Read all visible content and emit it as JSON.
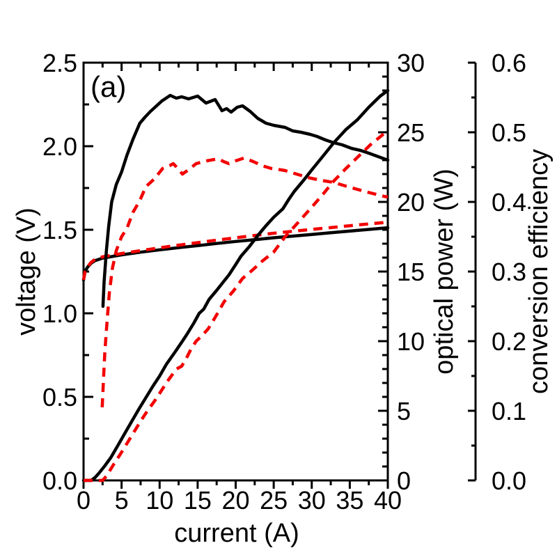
{
  "figure": {
    "panel_label": "(a)",
    "colors": {
      "foreground": "#000000",
      "background": "#ffffff",
      "device_a_black": "#000000",
      "device_b_red": "#f20000"
    }
  },
  "chart_data": {
    "type": "line",
    "title": "",
    "grid": false,
    "legend": "none",
    "axes": {
      "x": {
        "label": "current (A)",
        "range": [
          0,
          40
        ],
        "major_tick": 5,
        "minor_tick": 2.5,
        "tick_labels": [
          "0",
          "5",
          "10",
          "15",
          "20",
          "25",
          "30",
          "35",
          "40"
        ]
      },
      "y_left": {
        "label": "voltage (V)",
        "range": [
          0,
          2.5
        ],
        "major_tick": 0.5,
        "minor_tick": 0.25,
        "tick_labels": [
          "0.0",
          "0.5",
          "1.0",
          "1.5",
          "2.0",
          "2.5"
        ]
      },
      "y_right_power": {
        "label": "optical power (W)",
        "range": [
          0,
          30
        ],
        "major_tick": 5,
        "minor_tick": 1,
        "tick_labels": [
          "0",
          "5",
          "10",
          "15",
          "20",
          "25",
          "30"
        ]
      },
      "y_right_eff": {
        "label": "conversion efficiency",
        "range": [
          0,
          0.6
        ],
        "major_tick": 0.1,
        "minor_tick": 0.05,
        "tick_labels": [
          "0.0",
          "0.1",
          "0.2",
          "0.3",
          "0.4",
          "0.5",
          "0.6"
        ]
      }
    },
    "series": [
      {
        "name": "voltage-black-solid",
        "axis": "y_left",
        "line_style": "solid",
        "color_key": "device_a_black",
        "points": [
          [
            0,
            1.2
          ],
          [
            0.2,
            1.25
          ],
          [
            0.5,
            1.275
          ],
          [
            1,
            1.3
          ],
          [
            1.5,
            1.315
          ],
          [
            2.5,
            1.33
          ],
          [
            5,
            1.35
          ],
          [
            7.5,
            1.366
          ],
          [
            10,
            1.38
          ],
          [
            12.5,
            1.393
          ],
          [
            15,
            1.405
          ],
          [
            17.5,
            1.418
          ],
          [
            20,
            1.43
          ],
          [
            22.5,
            1.441
          ],
          [
            25,
            1.452
          ],
          [
            27.5,
            1.462
          ],
          [
            30,
            1.472
          ],
          [
            32.5,
            1.482
          ],
          [
            35,
            1.492
          ],
          [
            37.5,
            1.502
          ],
          [
            40,
            1.512
          ]
        ]
      },
      {
        "name": "voltage-red-dashed",
        "axis": "y_left",
        "line_style": "dashed",
        "color_key": "device_b_red",
        "points": [
          [
            0,
            1.2
          ],
          [
            0.2,
            1.252
          ],
          [
            0.5,
            1.278
          ],
          [
            1,
            1.305
          ],
          [
            1.5,
            1.322
          ],
          [
            2.5,
            1.338
          ],
          [
            5,
            1.358
          ],
          [
            7.5,
            1.375
          ],
          [
            10,
            1.392
          ],
          [
            12.5,
            1.408
          ],
          [
            15,
            1.423
          ],
          [
            17.5,
            1.438
          ],
          [
            20,
            1.452
          ],
          [
            22.5,
            1.466
          ],
          [
            25,
            1.479
          ],
          [
            27.5,
            1.491
          ],
          [
            30,
            1.502
          ],
          [
            32.5,
            1.513
          ],
          [
            35,
            1.524
          ],
          [
            37.5,
            1.535
          ],
          [
            40,
            1.545
          ]
        ]
      },
      {
        "name": "optical-power-black-solid",
        "axis": "y_right_power",
        "line_style": "solid",
        "color_key": "device_a_black",
        "points": [
          [
            0,
            0
          ],
          [
            1,
            0
          ],
          [
            1.5,
            0.2
          ],
          [
            2,
            0.5
          ],
          [
            2.8,
            1.05
          ],
          [
            3.6,
            1.65
          ],
          [
            4.5,
            2.5
          ],
          [
            5.45,
            3.4
          ],
          [
            6.4,
            4.3
          ],
          [
            7.3,
            5.15
          ],
          [
            8.2,
            5.95
          ],
          [
            9.1,
            6.75
          ],
          [
            10,
            7.5
          ],
          [
            10.9,
            8.35
          ],
          [
            12,
            9.2
          ],
          [
            13,
            10
          ],
          [
            13.6,
            10.5
          ],
          [
            14.5,
            11.3
          ],
          [
            15.2,
            12
          ],
          [
            15.8,
            12.3
          ],
          [
            16.5,
            13
          ],
          [
            17.5,
            13.65
          ],
          [
            18.3,
            14.2
          ],
          [
            19.1,
            14.75
          ],
          [
            20,
            15.5
          ],
          [
            20.7,
            16.1
          ],
          [
            21.8,
            16.8
          ],
          [
            23,
            17.65
          ],
          [
            24,
            18.3
          ],
          [
            25,
            18.9
          ],
          [
            26.2,
            19.5
          ],
          [
            27,
            20.2
          ],
          [
            27.7,
            20.75
          ],
          [
            29,
            21.6
          ],
          [
            30,
            22.3
          ],
          [
            31.5,
            23.3
          ],
          [
            32.9,
            24.25
          ],
          [
            34.5,
            25.2
          ],
          [
            36,
            25.9
          ],
          [
            37.5,
            26.8
          ],
          [
            39,
            27.6
          ],
          [
            40,
            28
          ]
        ]
      },
      {
        "name": "optical-power-red-dashed",
        "axis": "y_right_power",
        "line_style": "dashed",
        "color_key": "device_b_red",
        "points": [
          [
            0,
            0
          ],
          [
            2.5,
            0
          ],
          [
            3,
            0.3
          ],
          [
            3.9,
            1.1
          ],
          [
            4.8,
            1.85
          ],
          [
            5.7,
            2.65
          ],
          [
            6.6,
            3.45
          ],
          [
            7.5,
            4.25
          ],
          [
            8.4,
            5
          ],
          [
            9.4,
            5.75
          ],
          [
            10.3,
            6.5
          ],
          [
            11.2,
            7.25
          ],
          [
            12.2,
            8
          ],
          [
            12.9,
            8.2
          ],
          [
            13.5,
            8.75
          ],
          [
            14.1,
            9.4
          ],
          [
            14.8,
            10
          ],
          [
            15.6,
            10.4
          ],
          [
            16.4,
            10.9
          ],
          [
            17.4,
            11.8
          ],
          [
            18.5,
            12.85
          ],
          [
            19.7,
            13.6
          ],
          [
            20.9,
            14.5
          ],
          [
            22.2,
            15.1
          ],
          [
            23.5,
            15.75
          ],
          [
            25,
            16.4
          ],
          [
            26.5,
            17.5
          ],
          [
            28,
            18.4
          ],
          [
            29.8,
            19.5
          ],
          [
            31.4,
            20.5
          ],
          [
            32.9,
            21.5
          ],
          [
            34.5,
            22.4
          ],
          [
            36,
            23.2
          ],
          [
            37.7,
            24.1
          ],
          [
            39.5,
            24.9
          ],
          [
            40,
            25.1
          ]
        ]
      },
      {
        "name": "efficiency-black-solid",
        "axis": "y_right_eff",
        "line_style": "solid",
        "color_key": "device_a_black",
        "points": [
          [
            2.55,
            0.25
          ],
          [
            2.7,
            0.285
          ],
          [
            3,
            0.33
          ],
          [
            3.3,
            0.365
          ],
          [
            3.7,
            0.4
          ],
          [
            4.3,
            0.425
          ],
          [
            5,
            0.443
          ],
          [
            5.7,
            0.467
          ],
          [
            6.5,
            0.49
          ],
          [
            7.4,
            0.513
          ],
          [
            8.1,
            0.522
          ],
          [
            8.8,
            0.53
          ],
          [
            9.5,
            0.537
          ],
          [
            10.3,
            0.545
          ],
          [
            11.4,
            0.553
          ],
          [
            12.2,
            0.549
          ],
          [
            12.9,
            0.551
          ],
          [
            13.8,
            0.548
          ],
          [
            15,
            0.552
          ],
          [
            16.1,
            0.542
          ],
          [
            17.3,
            0.547
          ],
          [
            18.2,
            0.531
          ],
          [
            18.8,
            0.534
          ],
          [
            19.4,
            0.529
          ],
          [
            20.2,
            0.536
          ],
          [
            20.9,
            0.538
          ],
          [
            21.9,
            0.53
          ],
          [
            22.9,
            0.52
          ],
          [
            24,
            0.513
          ],
          [
            25,
            0.51
          ],
          [
            26.5,
            0.507
          ],
          [
            27.5,
            0.502
          ],
          [
            28.6,
            0.5
          ],
          [
            29.8,
            0.497
          ],
          [
            30.7,
            0.494
          ],
          [
            31.8,
            0.489
          ],
          [
            32.9,
            0.485
          ],
          [
            34,
            0.482
          ],
          [
            35.2,
            0.477
          ],
          [
            36.4,
            0.474
          ],
          [
            37.5,
            0.47
          ],
          [
            38.5,
            0.466
          ],
          [
            39.5,
            0.462
          ],
          [
            40,
            0.46
          ]
        ]
      },
      {
        "name": "efficiency-red-dashed",
        "axis": "y_right_eff",
        "line_style": "dashed",
        "color_key": "device_b_red",
        "points": [
          [
            2.45,
            0.105
          ],
          [
            2.6,
            0.14
          ],
          [
            2.8,
            0.185
          ],
          [
            3.1,
            0.23
          ],
          [
            3.4,
            0.27
          ],
          [
            3.8,
            0.305
          ],
          [
            4.3,
            0.33
          ],
          [
            5,
            0.35
          ],
          [
            5.7,
            0.362
          ],
          [
            6.5,
            0.385
          ],
          [
            7.4,
            0.402
          ],
          [
            8.2,
            0.422
          ],
          [
            9.3,
            0.433
          ],
          [
            10.4,
            0.448
          ],
          [
            11.3,
            0.452
          ],
          [
            11.8,
            0.455
          ],
          [
            12.4,
            0.448
          ],
          [
            13,
            0.44
          ],
          [
            13.9,
            0.447
          ],
          [
            14.8,
            0.455
          ],
          [
            16.2,
            0.459
          ],
          [
            17.7,
            0.462
          ],
          [
            18.4,
            0.458
          ],
          [
            19.1,
            0.455
          ],
          [
            20,
            0.459
          ],
          [
            21.1,
            0.463
          ],
          [
            22.3,
            0.458
          ],
          [
            23.5,
            0.452
          ],
          [
            24.7,
            0.448
          ],
          [
            26,
            0.446
          ],
          [
            26.5,
            0.445
          ],
          [
            27.7,
            0.441
          ],
          [
            29.5,
            0.435
          ],
          [
            31.2,
            0.431
          ],
          [
            32.9,
            0.428
          ],
          [
            34.4,
            0.423
          ],
          [
            36,
            0.418
          ],
          [
            37.7,
            0.413
          ],
          [
            39.5,
            0.408
          ],
          [
            40,
            0.407
          ]
        ]
      }
    ]
  }
}
